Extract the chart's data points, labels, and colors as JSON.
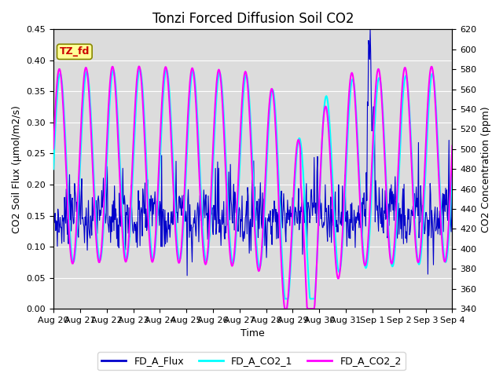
{
  "title": "Tonzi Forced Diffusion Soil CO2",
  "xlabel": "Time",
  "ylabel_left": "CO2 Soil Flux (μmol/m2/s)",
  "ylabel_right": "CO2 Concentration (ppm)",
  "ylim_left": [
    0.0,
    0.45
  ],
  "ylim_right": [
    340,
    620
  ],
  "yticks_left": [
    0.0,
    0.05,
    0.1,
    0.15,
    0.2,
    0.25,
    0.3,
    0.35,
    0.4,
    0.45
  ],
  "yticks_right": [
    340,
    360,
    380,
    400,
    420,
    440,
    460,
    480,
    500,
    520,
    540,
    560,
    580,
    600,
    620
  ],
  "xtick_labels": [
    "Aug 20",
    "Aug 21",
    "Aug 22",
    "Aug 23",
    "Aug 24",
    "Aug 25",
    "Aug 26",
    "Aug 27",
    "Aug 28",
    "Aug 29",
    "Aug 30",
    "Aug 31",
    "Sep 1",
    "Sep 2",
    "Sep 3",
    "Sep 4"
  ],
  "flux_color": "#0000cc",
  "co2_1_color": "#00ffff",
  "co2_2_color": "#ff00ff",
  "legend_labels": [
    "FD_A_Flux",
    "FD_A_CO2_1",
    "FD_A_CO2_2"
  ],
  "tag_text": "TZ_fd",
  "tag_bg": "#ffff99",
  "tag_fg": "#cc0000",
  "bg_color": "#dcdcdc",
  "flux_linewidth": 0.8,
  "co2_linewidth": 1.5,
  "title_fontsize": 12,
  "axis_fontsize": 9,
  "tick_fontsize": 8
}
